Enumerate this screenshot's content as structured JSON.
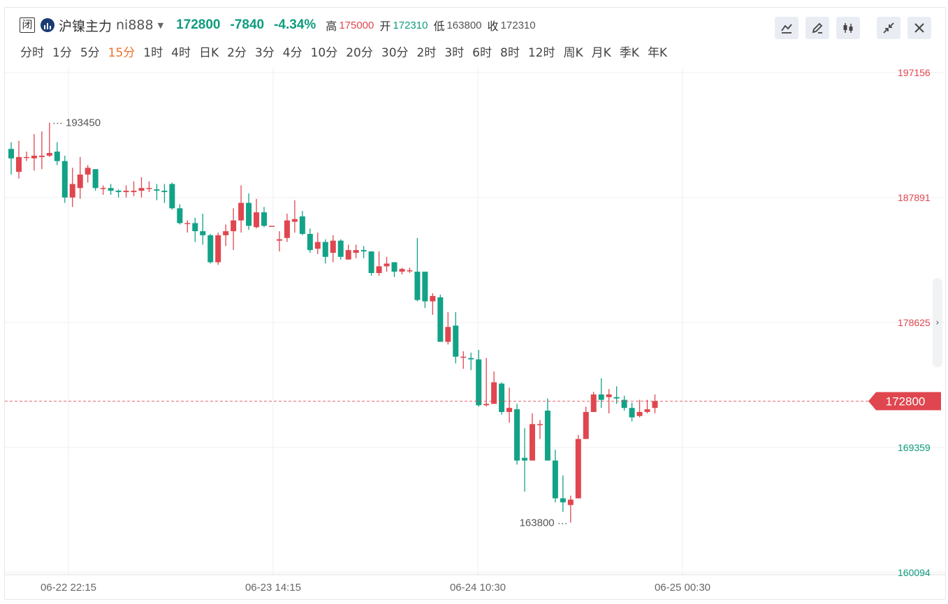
{
  "header": {
    "status_badge": "闭",
    "name": "沪镍主力",
    "code": "ni888",
    "price": "172800",
    "change": "-7840",
    "change_pct": "-4.34%",
    "high_label": "高",
    "high": "175000",
    "open_label": "开",
    "open": "172310",
    "low_label": "低",
    "low": "163800",
    "close_label": "收",
    "close": "172310"
  },
  "periods": [
    "分时",
    "1分",
    "5分",
    "15分",
    "1时",
    "4时",
    "日K",
    "2分",
    "3分",
    "4分",
    "10分",
    "20分",
    "30分",
    "2时",
    "3时",
    "6时",
    "8时",
    "12时",
    "周K",
    "月K",
    "季K",
    "年K"
  ],
  "active_period": "15分",
  "toolbar": {
    "icons": [
      "line-style-icon",
      "draw-pen-icon",
      "candlestick-icon",
      "collapse-arrows-icon",
      "close-icon"
    ]
  },
  "colors": {
    "up": "#e0464f",
    "down": "#12a287",
    "accent": "#f0712d"
  },
  "chart_data": {
    "type": "candlestick",
    "y_axis_labels": [
      "197156",
      "187891",
      "178625",
      "169359",
      "160094"
    ],
    "y_axis_label_colors": [
      "#e0464f",
      "#e0464f",
      "#e0464f",
      "#0e9c7e",
      "#0e9c7e"
    ],
    "x_axis_labels": [
      "06-22 22:15",
      "06-23 14:15",
      "06-24 10:30",
      "06-25 00:30"
    ],
    "current_price": "172800",
    "max_marker": "193450",
    "min_marker": "163800",
    "ylim": [
      160094,
      197156
    ],
    "grid": true,
    "candles": [
      [
        191500,
        190800,
        192000,
        189600
      ],
      [
        189800,
        190900,
        192100,
        189300
      ],
      [
        190900,
        190900,
        191300,
        190600
      ],
      [
        190800,
        191000,
        192600,
        189900
      ],
      [
        190900,
        191000,
        192800,
        190000
      ],
      [
        191000,
        191200,
        193450,
        190900
      ],
      [
        191300,
        190600,
        192000,
        190300
      ],
      [
        190600,
        187900,
        191000,
        187500
      ],
      [
        187900,
        188900,
        190100,
        187200
      ],
      [
        188600,
        189600,
        190900,
        187800
      ],
      [
        189600,
        190100,
        190300,
        189000
      ],
      [
        190000,
        188600,
        190000,
        188400
      ],
      [
        188600,
        188600,
        188800,
        188100
      ],
      [
        188600,
        188400,
        188900,
        188100
      ],
      [
        188400,
        188300,
        188500,
        187900
      ],
      [
        188300,
        188400,
        188800,
        187900
      ],
      [
        188300,
        188400,
        189100,
        188000
      ],
      [
        188400,
        188600,
        189400,
        187900
      ],
      [
        188600,
        188600,
        189100,
        188300
      ],
      [
        188500,
        188400,
        188900,
        187700
      ],
      [
        188400,
        188300,
        188900,
        187500
      ],
      [
        188900,
        187100,
        189000,
        187000
      ],
      [
        187100,
        186000,
        187400,
        185900
      ],
      [
        186000,
        186000,
        186200,
        185300
      ],
      [
        186000,
        185400,
        186400,
        184600
      ],
      [
        185400,
        185100,
        186700,
        184400
      ],
      [
        185100,
        183100,
        185200,
        183000
      ],
      [
        183100,
        185100,
        185300,
        182900
      ],
      [
        185100,
        185400,
        185900,
        184300
      ],
      [
        185400,
        186200,
        187100,
        184000
      ],
      [
        186200,
        187500,
        188800,
        185300
      ],
      [
        187500,
        185800,
        188200,
        185500
      ],
      [
        185700,
        186800,
        187800,
        185600
      ],
      [
        186800,
        185800,
        187200,
        185700
      ],
      [
        185800,
        185800,
        185800,
        185800
      ],
      [
        184700,
        184800,
        185400,
        183900
      ],
      [
        184900,
        186200,
        186700,
        184600
      ],
      [
        186100,
        186300,
        187700,
        185300
      ],
      [
        186500,
        185200,
        186900,
        185100
      ],
      [
        185200,
        184000,
        185600,
        183800
      ],
      [
        184100,
        184600,
        185300,
        183700
      ],
      [
        184600,
        183500,
        184800,
        183000
      ],
      [
        183800,
        184700,
        185100,
        183100
      ],
      [
        184700,
        183500,
        184800,
        183300
      ],
      [
        183300,
        184000,
        184400,
        183300
      ],
      [
        183800,
        184000,
        184400,
        183400
      ],
      [
        184000,
        183900,
        184300,
        183400
      ],
      [
        183900,
        182300,
        183900,
        182100
      ],
      [
        182300,
        182800,
        183900,
        182100
      ],
      [
        182800,
        183000,
        183500,
        182400
      ],
      [
        183100,
        182400,
        183100,
        182000
      ],
      [
        182400,
        182600,
        182700,
        182200
      ],
      [
        182500,
        182500,
        182700,
        182300
      ],
      [
        182400,
        180300,
        184900,
        180200
      ],
      [
        182400,
        180200,
        182300,
        179700
      ],
      [
        180200,
        180600,
        180800,
        179200
      ],
      [
        180500,
        177200,
        180700,
        177200
      ],
      [
        177200,
        178300,
        179400,
        177000
      ],
      [
        178400,
        176100,
        179400,
        175600
      ],
      [
        176100,
        176100,
        176500,
        175200
      ],
      [
        176000,
        175900,
        176400,
        175100
      ],
      [
        175900,
        172500,
        176600,
        172400
      ],
      [
        172500,
        172600,
        176000,
        172400
      ],
      [
        172600,
        174200,
        175000,
        173100
      ],
      [
        174100,
        172000,
        174200,
        171800
      ],
      [
        172000,
        172300,
        173800,
        171200
      ],
      [
        172200,
        168400,
        172600,
        168100
      ],
      [
        168600,
        168400,
        170800,
        166100
      ],
      [
        168400,
        171100,
        171900,
        168400
      ],
      [
        171100,
        171100,
        171400,
        170000
      ],
      [
        172100,
        168400,
        173000,
        168400
      ],
      [
        168400,
        165600,
        169200,
        165300
      ],
      [
        165600,
        165300,
        167300,
        164600
      ],
      [
        165100,
        165500,
        165800,
        163800
      ],
      [
        165600,
        170000,
        170300,
        165600
      ],
      [
        170000,
        172000,
        172400,
        170000
      ],
      [
        172000,
        173300,
        173500,
        172000
      ],
      [
        173300,
        172900,
        174500,
        172300
      ],
      [
        173100,
        173300,
        173700,
        171900
      ],
      [
        173100,
        173000,
        173900,
        172600
      ],
      [
        172900,
        172300,
        173200,
        172100
      ],
      [
        172300,
        171600,
        172700,
        171300
      ],
      [
        171700,
        172000,
        172900,
        171600
      ],
      [
        172000,
        172200,
        172900,
        171900
      ],
      [
        172300,
        172800,
        173300,
        171900
      ]
    ]
  }
}
